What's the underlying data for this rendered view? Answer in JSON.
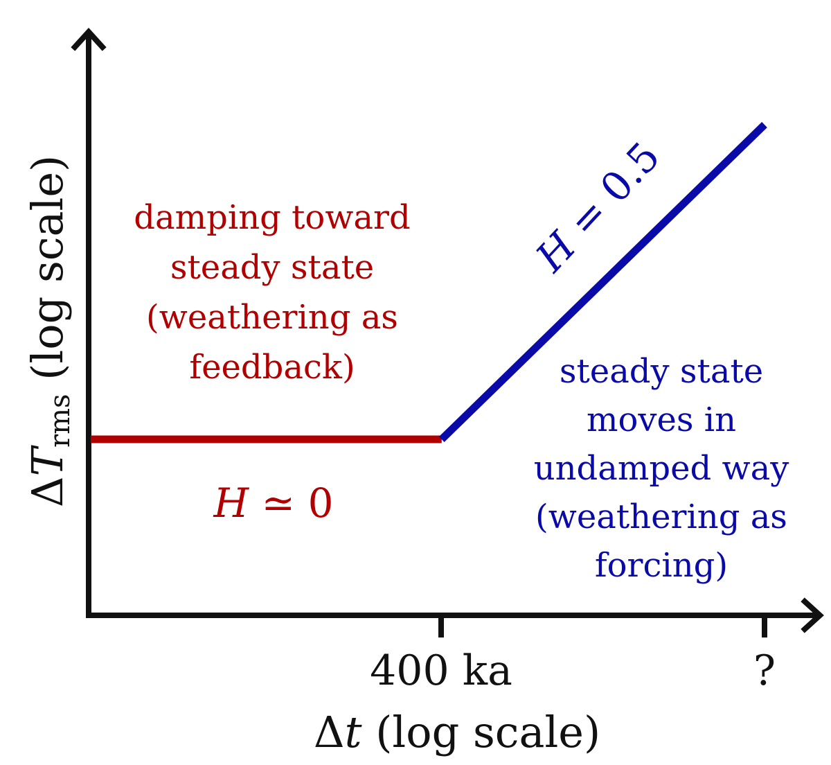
{
  "chart_data": {
    "type": "line",
    "title": "",
    "xlabel_prefix": "Δ",
    "xlabel_var": "t",
    "xlabel_suffix": " (log scale)",
    "ylabel_prefix": "Δ",
    "ylabel_var": "T",
    "ylabel_sub": "rms",
    "ylabel_suffix": " (log scale)",
    "x_ticks": [
      "400 ka",
      "?"
    ],
    "series": [
      {
        "color": "#b00000",
        "points": [
          [
            0,
            1
          ],
          [
            1,
            1
          ]
        ],
        "label_var": "H",
        "label_rel": " ≃ 0"
      },
      {
        "color": "#0a0aa8",
        "points": [
          [
            1,
            1
          ],
          [
            1.92,
            1.9
          ]
        ],
        "label_var": "H",
        "label_rel": " = 0.5"
      }
    ],
    "annotations": {
      "red": [
        "damping toward",
        "steady state",
        "(weathering as",
        "feedback)"
      ],
      "blue": [
        "steady state",
        "moves in",
        "undamped way",
        "(weathering as",
        "forcing)"
      ]
    },
    "colors": {
      "red": "#b00000",
      "blue": "#0a0aa8",
      "axis": "#111111"
    }
  }
}
